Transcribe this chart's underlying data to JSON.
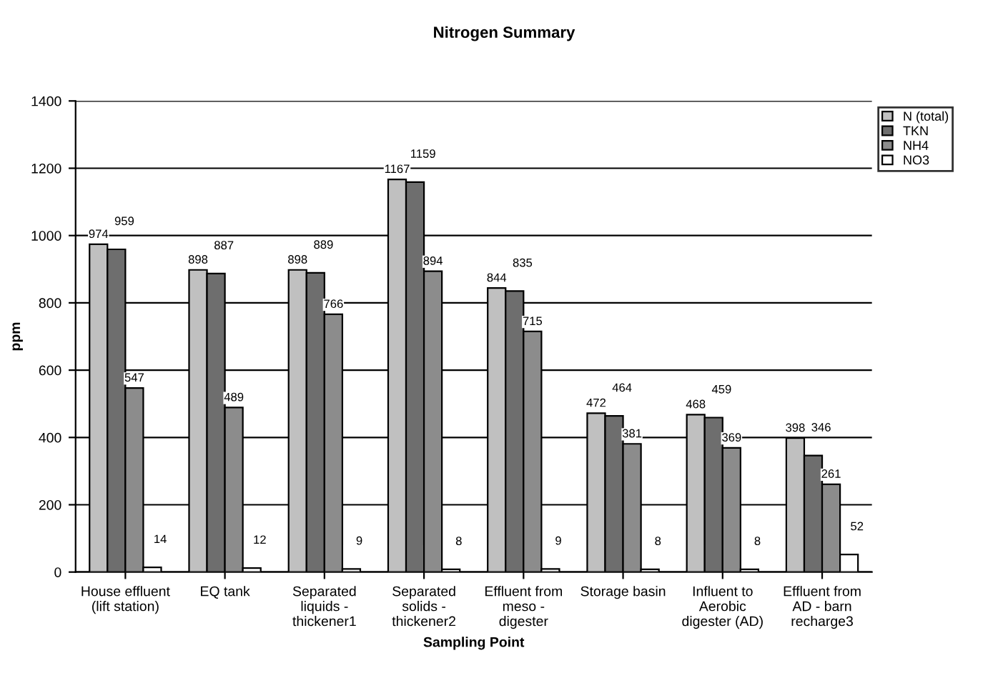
{
  "chart_data": {
    "type": "bar",
    "title": "Nitrogen Summary",
    "xlabel": "Sampling Point",
    "ylabel": "ppm",
    "categories": [
      "House effluent\n(lift station)",
      "EQ tank",
      "Separated\nliquids -\nthickener1",
      "Separated\nsolids -\nthickener2",
      "Effluent from\nmeso -\ndigester",
      "Storage basin",
      "Influent to\nAerobic\ndigester (AD)",
      "Effluent from\nAD - barn\nrecharge3"
    ],
    "series": [
      {
        "name": "N (total)",
        "color": "#c0c0c0",
        "values": [
          974,
          898,
          898,
          1167,
          844,
          472,
          468,
          398
        ]
      },
      {
        "name": "TKN",
        "color": "#6e6e6e",
        "values": [
          959,
          887,
          889,
          1159,
          835,
          464,
          459,
          346
        ]
      },
      {
        "name": "NH4",
        "color": "#8c8c8c",
        "values": [
          547,
          489,
          766,
          894,
          715,
          381,
          369,
          261
        ]
      },
      {
        "name": "NO3",
        "color": "#ffffff",
        "values": [
          14,
          12,
          9,
          8,
          9,
          8,
          8,
          52
        ]
      }
    ],
    "ylim": [
      0,
      1400
    ],
    "yticks": [
      0,
      200,
      400,
      600,
      800,
      1000,
      1200,
      1400
    ],
    "grid": "y",
    "legend": "top right",
    "data_labels": true
  }
}
